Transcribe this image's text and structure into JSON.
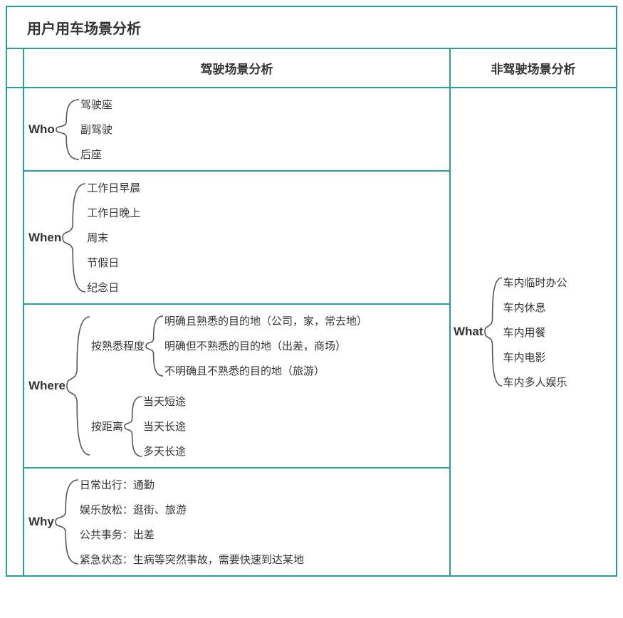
{
  "title": "用户用车场景分析",
  "columns": {
    "left": "驾驶场景分析",
    "right": "非驾驶场景分析"
  },
  "left_sections": [
    {
      "label": "Who",
      "children": [
        "驾驶座",
        "副驾驶",
        "后座"
      ]
    },
    {
      "label": "When",
      "children": [
        "工作日早晨",
        "工作日晚上",
        "周末",
        "节假日",
        "纪念日"
      ]
    },
    {
      "label": "Where",
      "subgroups": [
        {
          "label": "按熟悉程度",
          "children": [
            "明确且熟悉的目的地（公司，家，常去地）",
            "明确但不熟悉的目的地（出差，商场）",
            "不明确且不熟悉的目的地（旅游）"
          ]
        },
        {
          "label": "按距离",
          "children": [
            "当天短途",
            "当天长途",
            "多天长途"
          ]
        }
      ]
    },
    {
      "label": "Why",
      "children": [
        "日常出行：通勤",
        "娱乐放松：逛街、旅游",
        "公共事务：出差",
        "紧急状态：生病等突然事故，需要快速到达某地"
      ]
    }
  ],
  "right_section": {
    "label": "What",
    "children": [
      "车内临时办公",
      "车内休息",
      "车内用餐",
      "车内电影",
      "车内多人娱乐"
    ]
  },
  "style": {
    "border_color": "#2a9d9d",
    "brace_color": "#555555",
    "text_color": "#333333",
    "row_gap": 14,
    "brace_width": 36,
    "small_brace_width": 28
  }
}
